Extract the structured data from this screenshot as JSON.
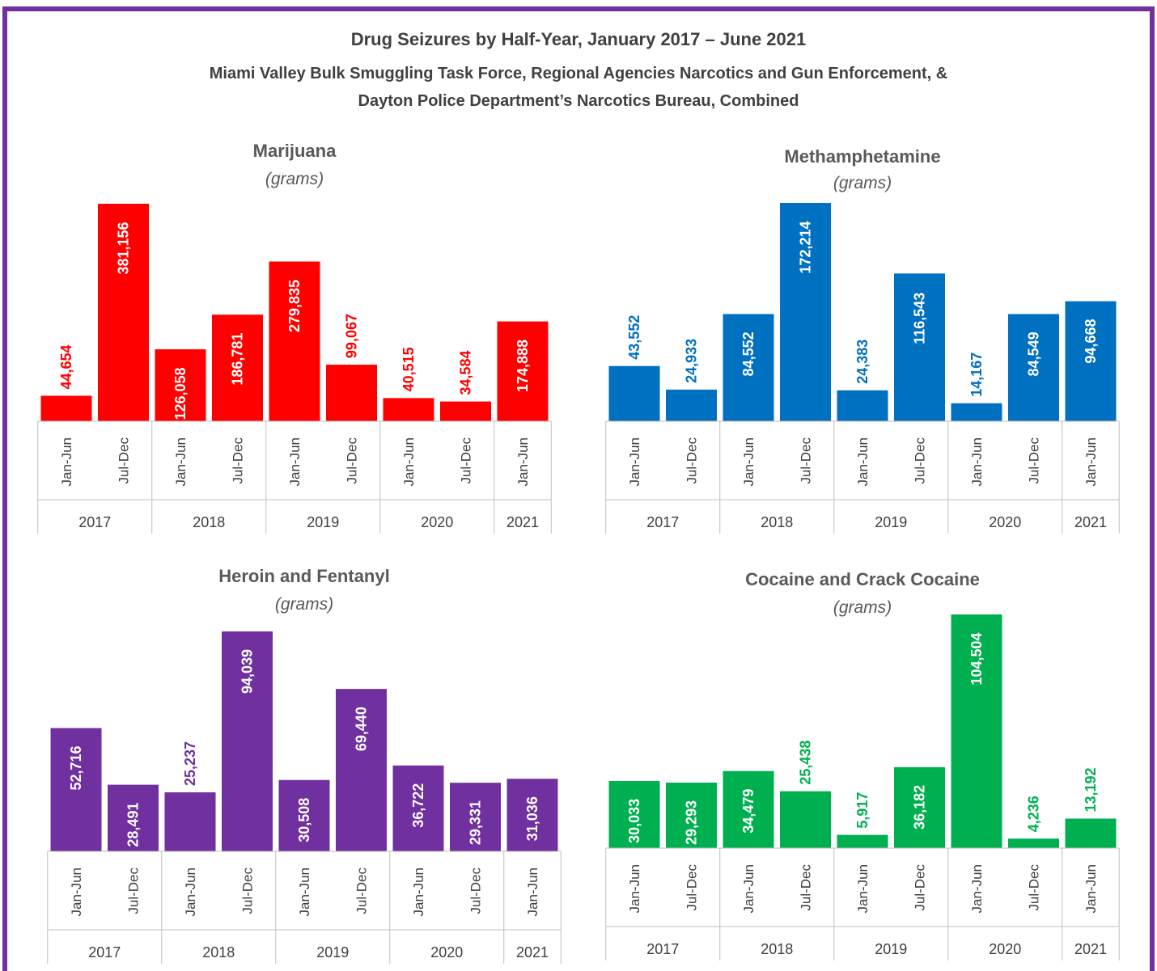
{
  "title": {
    "line1": "Drug Seizures by Half-Year, January 2017 – June 2021",
    "line2": "Miami Valley Bulk Smuggling Task Force, Regional Agencies Narcotics and Gun Enforcement, &",
    "line3": "Dayton Police Department’s Narcotics Bureau, Combined"
  },
  "colors": {
    "frame": "#7030a0"
  },
  "chart_data": [
    {
      "type": "bar",
      "title": "Marijuana",
      "subtitle": "(grams)",
      "color": "#ff0000",
      "categories": [
        "Jan-Jun",
        "Jul-Dec",
        "Jan-Jun",
        "Jul-Dec",
        "Jan-Jun",
        "Jul-Dec",
        "Jan-Jun",
        "Jul-Dec",
        "Jan-Jun"
      ],
      "years": [
        "2017",
        "2018",
        "2019",
        "2020",
        "2021"
      ],
      "values": [
        44654,
        381156,
        126058,
        186781,
        279835,
        99067,
        40515,
        34584,
        174888
      ],
      "labels": [
        "44,654",
        "381,156",
        "126,058",
        "186,781",
        "279,835",
        "99,067",
        "40,515",
        "34,584",
        "174,888"
      ],
      "ylim": [
        0,
        381156
      ]
    },
    {
      "type": "bar",
      "title": "Methamphetamine",
      "subtitle": "(grams)",
      "color": "#0070c0",
      "categories": [
        "Jan-Jun",
        "Jul-Dec",
        "Jan-Jun",
        "Jul-Dec",
        "Jan-Jun",
        "Jul-Dec",
        "Jan-Jun",
        "Jul-Dec",
        "Jan-Jun"
      ],
      "years": [
        "2017",
        "2018",
        "2019",
        "2020",
        "2021"
      ],
      "values": [
        43552,
        24933,
        84552,
        172214,
        24383,
        116543,
        14167,
        84549,
        94668
      ],
      "labels": [
        "43,552",
        "24,933",
        "84,552",
        "172,214",
        "24,383",
        "116,543",
        "14,167",
        "84,549",
        "94,668"
      ],
      "ylim": [
        0,
        172214
      ]
    },
    {
      "type": "bar",
      "title": "Heroin and Fentanyl",
      "subtitle": "(grams)",
      "color": "#7030a0",
      "categories": [
        "Jan-Jun",
        "Jul-Dec",
        "Jan-Jun",
        "Jul-Dec",
        "Jan-Jun",
        "Jul-Dec",
        "Jan-Jun",
        "Jul-Dec",
        "Jan-Jun"
      ],
      "years": [
        "2017",
        "2018",
        "2019",
        "2020",
        "2021"
      ],
      "values": [
        52716,
        28491,
        25237,
        94039,
        30508,
        69440,
        36722,
        29331,
        31036
      ],
      "labels": [
        "52,716",
        "28,491",
        "25,237",
        "94,039",
        "30,508",
        "69,440",
        "36,722",
        "29,331",
        "31,036"
      ],
      "ylim": [
        0,
        94039
      ]
    },
    {
      "type": "bar",
      "title": "Cocaine and Crack Cocaine",
      "subtitle": "(grams)",
      "color": "#00b050",
      "categories": [
        "Jan-Jun",
        "Jul-Dec",
        "Jan-Jun",
        "Jul-Dec",
        "Jan-Jun",
        "Jul-Dec",
        "Jan-Jun",
        "Jul-Dec",
        "Jan-Jun"
      ],
      "years": [
        "2017",
        "2018",
        "2019",
        "2020",
        "2021"
      ],
      "values": [
        30033,
        29293,
        34479,
        25438,
        5917,
        36182,
        104504,
        4236,
        13192
      ],
      "labels": [
        "30,033",
        "29,293",
        "34,479",
        "25,438",
        "5,917",
        "36,182",
        "104,504",
        "4,236",
        "13,192"
      ],
      "ylim": [
        0,
        104504
      ]
    }
  ]
}
